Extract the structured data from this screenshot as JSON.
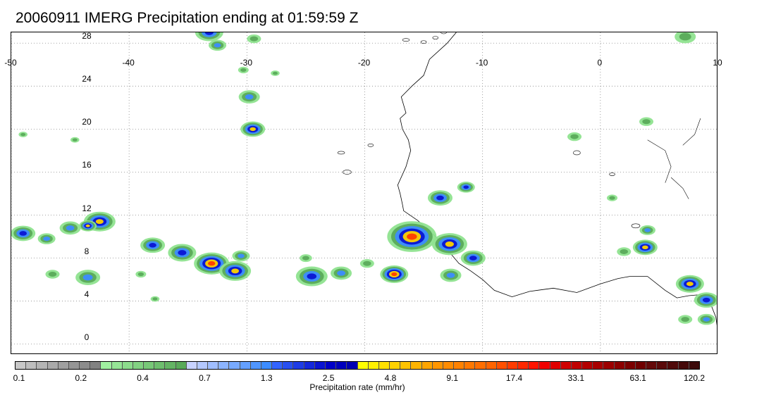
{
  "title": "20060911 IMERG Precipitation ending at 01:59:59 Z",
  "map": {
    "lon_range": [
      -50,
      10
    ],
    "lat_range": [
      -1,
      29
    ],
    "lon_ticks": [
      "-50",
      "-40",
      "-30",
      "-20",
      "-10",
      "0",
      "10"
    ],
    "lat_ticks": [
      "0",
      "4",
      "8",
      "12",
      "16",
      "20",
      "24",
      "28"
    ],
    "gridlines": "dotted",
    "coastline_color": "#000000"
  },
  "colorbar": {
    "title": "Precipitation rate (mm/hr)",
    "labels": [
      "0.1",
      "0.2",
      "0.4",
      "0.7",
      "1.3",
      "2.5",
      "4.8",
      "9.1",
      "17.4",
      "33.1",
      "63.1",
      "120.2"
    ],
    "colors": [
      "#c8c8c8",
      "#bebebe",
      "#b4b4b4",
      "#aaaaaa",
      "#a0a0a0",
      "#969696",
      "#8c8c8c",
      "#828282",
      "#a0f0a0",
      "#96e696",
      "#8cdc8c",
      "#82d282",
      "#78c878",
      "#6ebe6e",
      "#64b464",
      "#5aaa5a",
      "#c8d2ff",
      "#b4c8ff",
      "#a0beff",
      "#8cb4ff",
      "#78aaff",
      "#64a0ff",
      "#5096ff",
      "#3c8cff",
      "#3264ff",
      "#2850f0",
      "#1e3ce6",
      "#1428dc",
      "#0a14d2",
      "#0000c8",
      "#0000be",
      "#0000b4",
      "#ffff00",
      "#fff000",
      "#ffe100",
      "#ffd200",
      "#ffc300",
      "#ffb400",
      "#ffa500",
      "#ff9600",
      "#ff8c00",
      "#ff8200",
      "#ff7800",
      "#ff6e00",
      "#ff6400",
      "#ff5000",
      "#ff3c00",
      "#ff2800",
      "#ff1400",
      "#f00000",
      "#e00000",
      "#d00000",
      "#c00000",
      "#b40000",
      "#a80000",
      "#9c0000",
      "#8c0000",
      "#7c0000",
      "#700000",
      "#640a0a",
      "#5a0a0a",
      "#500a0a",
      "#460a0a",
      "#3c0a0a"
    ]
  }
}
